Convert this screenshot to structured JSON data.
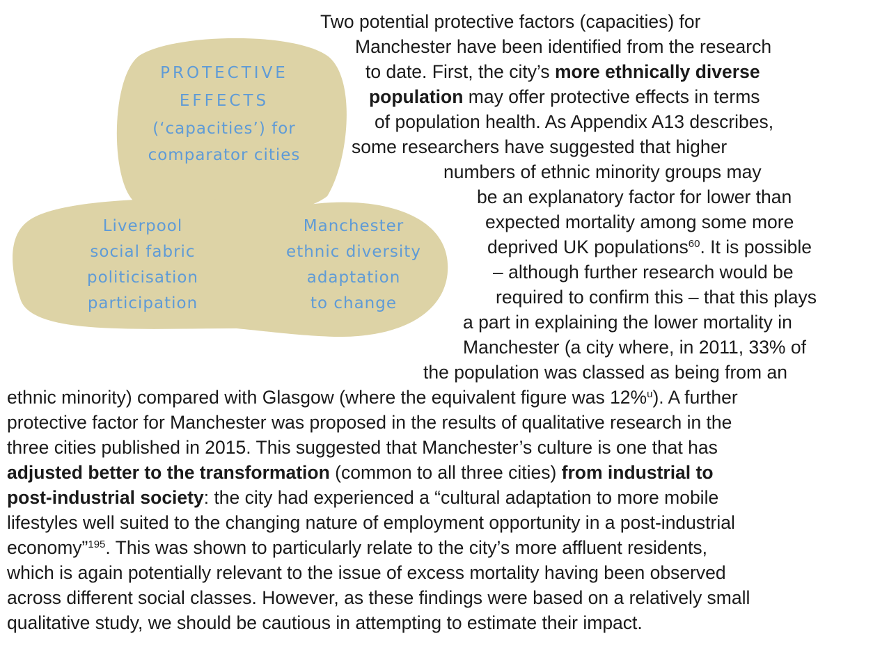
{
  "diagram": {
    "title": [
      "PROTECTIVE",
      "EFFECTS",
      "(‘capacities’) for",
      "comparator cities"
    ],
    "left": [
      "Liverpool",
      "social fabric",
      "politicisation",
      "participation"
    ],
    "right": [
      "Manchester",
      "ethnic diversity",
      "adaptation",
      "to change"
    ]
  },
  "text": {
    "lines": [
      [
        {
          "text": "Two potential protective factors (capacities) for"
        }
      ],
      [
        {
          "text": "Manchester have been identified from the research"
        }
      ],
      [
        {
          "text": "to date. First, the city’s "
        },
        {
          "text": "more ethnically diverse",
          "style": "bold"
        }
      ],
      [
        {
          "text": "population",
          "style": "bold"
        },
        {
          "text": " may offer protective effects in terms"
        }
      ],
      [
        {
          "text": "of population health. As Appendix A13 describes,"
        }
      ],
      [
        {
          "text": "some researchers have suggested that higher"
        }
      ],
      [
        {
          "text": "numbers of ethnic minority groups may"
        }
      ],
      [
        {
          "text": "be an explanatory factor for lower than"
        }
      ],
      [
        {
          "text": "expected mortality among some more"
        }
      ],
      [
        {
          "text": "deprived UK populations"
        },
        {
          "text": "60",
          "style": "sup"
        },
        {
          "text": ". It is possible"
        }
      ],
      [
        {
          "text": "– although further research would be"
        }
      ],
      [
        {
          "text": "required to confirm this – that this plays"
        }
      ],
      [
        {
          "text": "a part in explaining the lower mortality in"
        }
      ],
      [
        {
          "text": "Manchester (a city where, in 2011, 33% of"
        }
      ],
      [
        {
          "text": "the population was classed as being from an"
        }
      ],
      [
        {
          "text": "ethnic minority) compared with Glasgow (where the equivalent figure was 12%"
        },
        {
          "text": "u",
          "style": "sup"
        },
        {
          "text": "). A further"
        }
      ],
      [
        {
          "text": "protective factor for Manchester was proposed in the results of qualitative research in the"
        }
      ],
      [
        {
          "text": "three cities published in 2015. This suggested that Manchester’s culture is one that has"
        }
      ],
      [
        {
          "text": "adjusted better to the transformation",
          "style": "bold"
        },
        {
          "text": " (common to all three cities) "
        },
        {
          "text": "from industrial to",
          "style": "bold"
        }
      ],
      [
        {
          "text": "post-industrial society",
          "style": "bold"
        },
        {
          "text": ": the city had experienced a “cultural adaptation to more mobile"
        }
      ],
      [
        {
          "text": "lifestyles well suited to the changing nature of employment opportunity in a post-industrial"
        }
      ],
      [
        {
          "text": "economy”"
        },
        {
          "text": "195",
          "style": "sup"
        },
        {
          "text": ". This was shown to particularly relate to the city’s more affluent residents,"
        }
      ],
      [
        {
          "text": "which is again potentially relevant to the issue of excess mortality having been observed"
        }
      ],
      [
        {
          "text": "across different social classes. However, as these findings were based on a relatively small"
        }
      ],
      [
        {
          "text": "qualitative study, we should be cautious in attempting to estimate their impact."
        }
      ]
    ]
  }
}
